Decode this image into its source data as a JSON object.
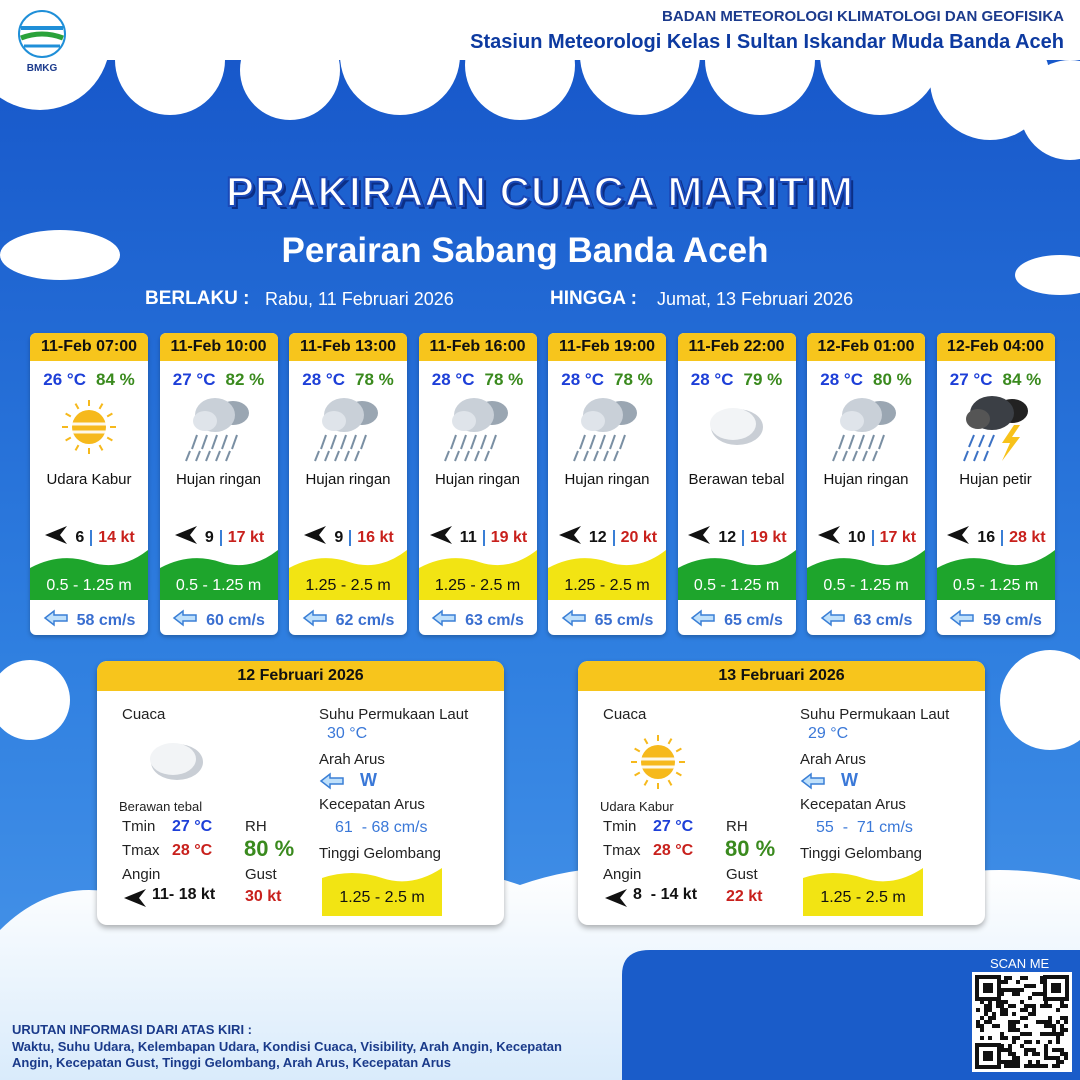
{
  "header": {
    "logo": "BMKG",
    "org": "BADAN METEOROLOGI KLIMATOLOGI DAN GEOFISIKA",
    "station": "Stasiun Meteorologi Kelas I Sultan Iskandar Muda Banda Aceh"
  },
  "title": "PRAKIRAAN CUACA MARITIM",
  "subtitle": "Perairan Sabang Banda Aceh",
  "validity": {
    "from_label": "BERLAKU :",
    "from": "Rabu, 11 Februari 2026",
    "to_label": "HINGGA :",
    "to": "Jumat, 13 Februari 2026"
  },
  "cards": [
    {
      "time": "11-Feb 07:00",
      "temp": "26 °C",
      "rh": "84 %",
      "weather": "Udara Kabur",
      "wind": "6",
      "gust": "14 kt",
      "wave": "0.5 - 1.25 m",
      "wave_color": "#1ea52c",
      "current": "58 cm/s"
    },
    {
      "time": "11-Feb 10:00",
      "temp": "27 °C",
      "rh": "82 %",
      "weather": "Hujan ringan",
      "wind": "9",
      "gust": "17 kt",
      "wave": "0.5 - 1.25 m",
      "wave_color": "#1ea52c",
      "current": "60 cm/s"
    },
    {
      "time": "11-Feb 13:00",
      "temp": "28 °C",
      "rh": "78 %",
      "weather": "Hujan ringan",
      "wind": "9",
      "gust": "16 kt",
      "wave": "1.25 - 2.5 m",
      "wave_color": "#f2e413",
      "current": "62 cm/s"
    },
    {
      "time": "11-Feb 16:00",
      "temp": "28 °C",
      "rh": "78 %",
      "weather": "Hujan ringan",
      "wind": "11",
      "gust": "19 kt",
      "wave": "1.25 - 2.5 m",
      "wave_color": "#f2e413",
      "current": "63 cm/s"
    },
    {
      "time": "11-Feb 19:00",
      "temp": "28 °C",
      "rh": "78 %",
      "weather": "Hujan ringan",
      "wind": "12",
      "gust": "20 kt",
      "wave": "1.25 - 2.5 m",
      "wave_color": "#f2e413",
      "current": "65 cm/s"
    },
    {
      "time": "11-Feb 22:00",
      "temp": "28 °C",
      "rh": "79 %",
      "weather": "Berawan tebal",
      "wind": "12",
      "gust": "19 kt",
      "wave": "0.5 - 1.25 m",
      "wave_color": "#1ea52c",
      "current": "65 cm/s"
    },
    {
      "time": "12-Feb 01:00",
      "temp": "28 °C",
      "rh": "80 %",
      "weather": "Hujan ringan",
      "wind": "10",
      "gust": "17 kt",
      "wave": "0.5 - 1.25 m",
      "wave_color": "#1ea52c",
      "current": "63 cm/s"
    },
    {
      "time": "12-Feb 04:00",
      "temp": "27 °C",
      "rh": "84 %",
      "weather": "Hujan petir",
      "wind": "16",
      "gust": "28 kt",
      "wave": "0.5 - 1.25 m",
      "wave_color": "#1ea52c",
      "current": "59 cm/s"
    }
  ],
  "days": [
    {
      "date": "12 Februari 2026",
      "weather_label": "Cuaca",
      "weather": "Berawan tebal",
      "tmin_label": "Tmin",
      "tmin": "27 °C",
      "tmax_label": "Tmax",
      "tmax": "28 °C",
      "rh_label": "RH",
      "rh": "80 %",
      "wind_label": "Angin",
      "wind": "11- 18 kt",
      "gust_label": "Gust",
      "gust": "30 kt",
      "sst_label": "Suhu Permukaan Laut",
      "sst": "30 °C",
      "dir_label": "Arah Arus",
      "dir": "W",
      "speed_label": "Kecepatan Arus",
      "speed": "61  - 68 cm/s",
      "wave_label": "Tinggi Gelombang",
      "wave": "1.25 - 2.5 m"
    },
    {
      "date": "13 Februari 2026",
      "weather_label": "Cuaca",
      "weather": "Udara Kabur",
      "tmin_label": "Tmin",
      "tmin": "27 °C",
      "tmax_label": "Tmax",
      "tmax": "28 °C",
      "rh_label": "RH",
      "rh": "80 %",
      "wind_label": "Angin",
      "wind": "8  - 14 kt",
      "gust_label": "Gust",
      "gust": "22 kt",
      "sst_label": "Suhu Permukaan Laut",
      "sst": "29 °C",
      "dir_label": "Arah Arus",
      "dir": "W",
      "speed_label": "Kecepatan Arus",
      "speed": "55  -  71 cm/s",
      "wave_label": "Tinggi Gelombang",
      "wave": "1.25 - 2.5 m"
    }
  ],
  "footer": {
    "heading": "URUTAN INFORMASI DARI ATAS KIRI :",
    "text": "Waktu, Suhu Udara, Kelembapan Udara, Kondisi Cuaca, Visibility, Arah Angin, Kecepatan Angin, Kecepatan Gust, Tinggi Gelombang, Arah Arus, Kecepatan Arus",
    "scan": "SCAN ME"
  }
}
